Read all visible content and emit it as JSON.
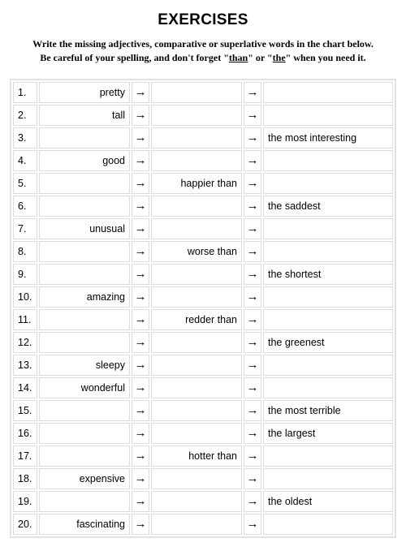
{
  "title": "EXERCISES",
  "instructions_line1": "Write the missing adjectives, comparative or superlative words in the chart below.",
  "instructions_line2_pre": "Be careful of your spelling, and don't forget \"",
  "instructions_line2_u1": "than",
  "instructions_line2_mid": "\" or \"",
  "instructions_line2_u2": "the",
  "instructions_line2_post": "\" when you need it.",
  "arrow_glyph": "→",
  "colors": {
    "background": "#ffffff",
    "border": "#dcdcdc",
    "outer_border": "#e2e2e2",
    "text": "#000000"
  },
  "rows": [
    {
      "n": "1.",
      "adj": "pretty",
      "comp": "",
      "sup": ""
    },
    {
      "n": "2.",
      "adj": "tall",
      "comp": "",
      "sup": ""
    },
    {
      "n": "3.",
      "adj": "",
      "comp": "",
      "sup": "the most interesting"
    },
    {
      "n": "4.",
      "adj": "good",
      "comp": "",
      "sup": ""
    },
    {
      "n": "5.",
      "adj": "",
      "comp": "happier than",
      "sup": ""
    },
    {
      "n": "6.",
      "adj": "",
      "comp": "",
      "sup": "the saddest"
    },
    {
      "n": "7.",
      "adj": "unusual",
      "comp": "",
      "sup": ""
    },
    {
      "n": "8.",
      "adj": "",
      "comp": "worse than",
      "sup": ""
    },
    {
      "n": "9.",
      "adj": "",
      "comp": "",
      "sup": "the shortest"
    },
    {
      "n": "10.",
      "adj": "amazing",
      "comp": "",
      "sup": ""
    },
    {
      "n": "11.",
      "adj": "",
      "comp": "redder than",
      "sup": ""
    },
    {
      "n": "12.",
      "adj": "",
      "comp": "",
      "sup": "the greenest"
    },
    {
      "n": "13.",
      "adj": "sleepy",
      "comp": "",
      "sup": ""
    },
    {
      "n": "14.",
      "adj": "wonderful",
      "comp": "",
      "sup": ""
    },
    {
      "n": "15.",
      "adj": "",
      "comp": "",
      "sup": "the most terrible"
    },
    {
      "n": "16.",
      "adj": "",
      "comp": "",
      "sup": "the largest"
    },
    {
      "n": "17.",
      "adj": "",
      "comp": "hotter than",
      "sup": ""
    },
    {
      "n": "18.",
      "adj": "expensive",
      "comp": "",
      "sup": ""
    },
    {
      "n": "19.",
      "adj": "",
      "comp": "",
      "sup": "the oldest"
    },
    {
      "n": "20.",
      "adj": "fascinating",
      "comp": "",
      "sup": ""
    }
  ]
}
